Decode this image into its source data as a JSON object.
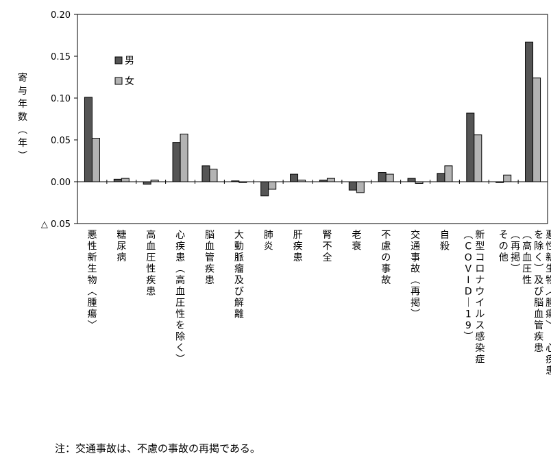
{
  "chart_data": {
    "type": "bar",
    "ylabel": "寄与年数（年）",
    "ylim": [
      -0.05,
      0.2
    ],
    "yticks": [
      0.2,
      0.15,
      0.1,
      0.05,
      0.0,
      -0.05
    ],
    "ytick_labels": [
      "0.20",
      "0.15",
      "0.10",
      "0.05",
      "0.00",
      "△ 0.05"
    ],
    "grid": false,
    "legend_position": "top-left",
    "categories": [
      "悪性新生物〈腫瘍〉",
      "糖尿病",
      "高血圧性疾患",
      "心疾患（高血圧性を除く）",
      "脳血管疾患",
      "大動脈瘤及び解離",
      "肺炎",
      "肝疾患",
      "腎不全",
      "老衰",
      "不慮の事故",
      "交通事故（再掲）",
      "自殺",
      "新型コロナウイルス感染症（COVID-19）",
      "その他",
      "悪性新生物〈腫瘍〉、心疾患（高血圧性を除く）及び脳血管疾患（再掲）"
    ],
    "category_lines": [
      [
        "悪性新生物〈腫瘍〉"
      ],
      [
        "糖尿病"
      ],
      [
        "高血圧性疾患"
      ],
      [
        "心疾患（高血圧性を除く）"
      ],
      [
        "脳血管疾患"
      ],
      [
        "大動脈瘤及び解離"
      ],
      [
        "肺炎"
      ],
      [
        "肝疾患"
      ],
      [
        "腎不全"
      ],
      [
        "老衰"
      ],
      [
        "不慮の事故"
      ],
      [
        "交通事故（再掲）"
      ],
      [
        "自殺"
      ],
      [
        "新型コロナウイルス感染症",
        "（COVID-19）"
      ],
      [
        "その他"
      ],
      [
        "悪性新生物〈腫瘍〉、心疾患",
        "を除く）及び脳血管疾患",
        "（高血圧性",
        "（再掲）"
      ]
    ],
    "series": [
      {
        "name": "男",
        "color": "#555555",
        "values": [
          0.101,
          0.003,
          -0.003,
          0.047,
          0.019,
          0.001,
          -0.017,
          0.009,
          0.002,
          -0.01,
          0.011,
          0.004,
          0.01,
          0.082,
          -0.001,
          0.167
        ]
      },
      {
        "name": "女",
        "color": "#b3b3b3",
        "values": [
          0.052,
          0.004,
          0.002,
          0.057,
          0.015,
          -0.001,
          -0.009,
          0.002,
          0.004,
          -0.013,
          0.009,
          -0.002,
          0.019,
          0.056,
          0.008,
          0.124
        ]
      }
    ]
  },
  "note": "注：交通事故は、不慮の事故の再掲である。"
}
